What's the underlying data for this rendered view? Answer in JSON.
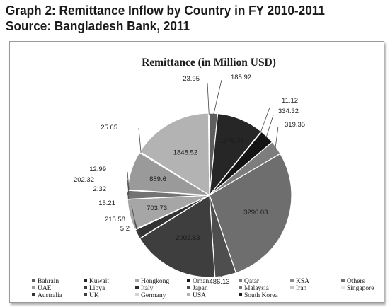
{
  "heading": {
    "line1": "Graph 2: Remittance Inflow by Country in FY 2010-2011",
    "line2": "Source: Bangladesh Bank, 2011"
  },
  "chart_data": {
    "type": "pie",
    "title": "Remittance (in Million USD)",
    "legend_position": "bottom",
    "legend_order": [
      "Bahrain",
      "Kuwait",
      "Hongkong",
      "Oman",
      "Qatar",
      "KSA",
      "Others",
      "UAE",
      "Libya",
      "Italy",
      "Japan",
      "Malaysia",
      "Iran",
      "Singapore",
      "Australia",
      "UK",
      "Germany",
      "USA",
      "South Korea"
    ],
    "slices": [
      {
        "value": 185.92,
        "label": "185.92",
        "color": "#5e5e5e"
      },
      {
        "value": 1075.75,
        "label": "1075.75",
        "color": "#262626"
      },
      {
        "value": 11.12,
        "label": "11.12",
        "color": "#3a3a3a"
      },
      {
        "value": 334.32,
        "label": "334.32",
        "color": "#141414"
      },
      {
        "value": 319.35,
        "label": "319.35",
        "color": "#7d7d7d"
      },
      {
        "value": 3290.03,
        "label": "3290.03",
        "color": "#6e6e6e"
      },
      {
        "value": 486.13,
        "label": "486.13",
        "color": "#4e4e4e"
      },
      {
        "value": 2002.63,
        "label": "2002.63",
        "color": "#3e3e3e"
      },
      {
        "value": 5.2,
        "label": "5.2",
        "color": "#2a2a2a"
      },
      {
        "value": 215.58,
        "label": "215.58",
        "color": "#333333"
      },
      {
        "value": 15.21,
        "label": "15.21",
        "color": "#8c8c8c"
      },
      {
        "value": 703.73,
        "label": "703.73",
        "color": "#a6a6a6"
      },
      {
        "value": 2.32,
        "label": "2.32",
        "color": "#1e1e1e"
      },
      {
        "value": 202.32,
        "label": "202.32",
        "color": "#737373"
      },
      {
        "value": 12.99,
        "label": "12.99",
        "color": "#c4c4c4"
      },
      {
        "value": 889.6,
        "label": "889.6",
        "color": "#9a9a9a"
      },
      {
        "value": 25.65,
        "label": "25.65",
        "color": "#d4d4d4"
      },
      {
        "value": 1848.52,
        "label": "1848.52",
        "color": "#b3b3b3"
      },
      {
        "value": 23.95,
        "label": "23.95",
        "color": "#e6e6e6"
      }
    ],
    "legend_colors": [
      "#5e5e5e",
      "#262626",
      "#a6a6a6",
      "#141414",
      "#7d7d7d",
      "#8c8c8c",
      "#6e6e6e",
      "#9a9a9a",
      "#3a3a3a",
      "#2a2a2a",
      "#4e4e4e",
      "#737373",
      "#c4c4c4",
      "#e6e6e6",
      "#333333",
      "#3e3e3e",
      "#d4d4d4",
      "#b3b3b3",
      "#1e1e1e"
    ]
  }
}
